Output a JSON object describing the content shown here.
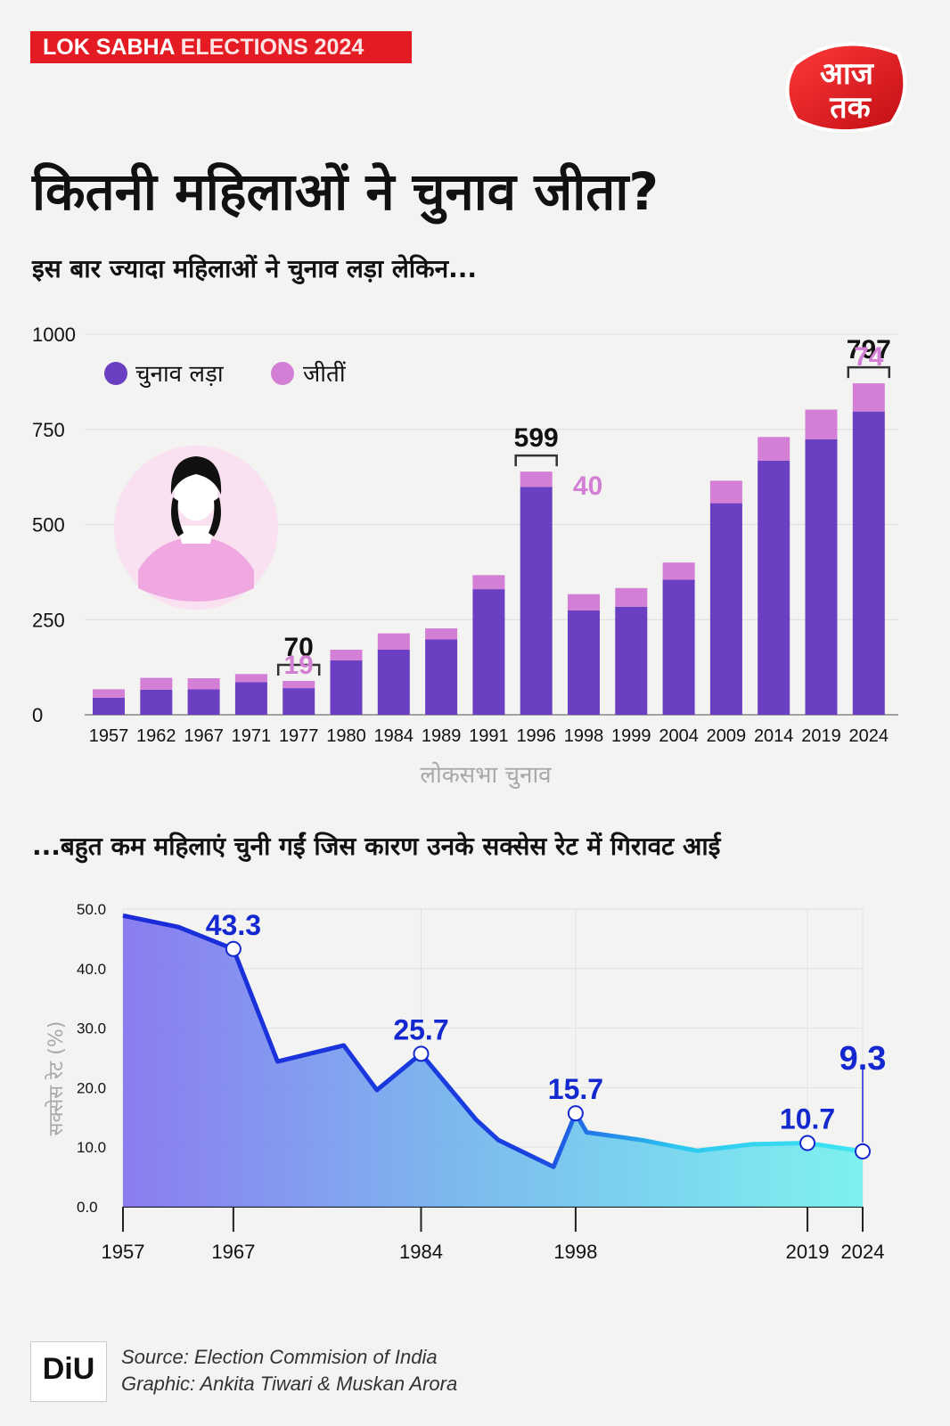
{
  "header": {
    "tag_part1": "LOK SABHA",
    "tag_part2": "ELECTIONS 2024",
    "logo_text_top": "आज",
    "logo_text_bottom": "तक"
  },
  "title": "कितनी महिलाओं ने चुनाव जीता?",
  "subtitle": "इस बार ज्यादा महिलाओं ने चुनाव लड़ा लेकिन...",
  "subtitle2": "...बहुत कम महिलाएं चुनी गईं जिस कारण उनके सक्सेस रेट में गिरावट आई",
  "colors": {
    "contested": "#6a3fc1",
    "won": "#d47fd6",
    "line": "#1428d0",
    "accent_red": "#e41b23"
  },
  "chart_data": [
    {
      "type": "bar",
      "xlabel": "लोकसभा चुनाव",
      "ylabel": "",
      "ylim": [
        0,
        1000
      ],
      "yticks": [
        0,
        250,
        500,
        750,
        1000
      ],
      "legend": [
        "चुनाव लड़ा",
        "जीतीं"
      ],
      "legend_position": "top-left",
      "categories": [
        "1957",
        "1962",
        "1967",
        "1971",
        "1977",
        "1980",
        "1984",
        "1989",
        "1991",
        "1996",
        "1998",
        "1999",
        "2004",
        "2009",
        "2014",
        "2019",
        "2024"
      ],
      "series": [
        {
          "name": "चुनाव लड़ा",
          "values": [
            45,
            66,
            67,
            86,
            70,
            143,
            171,
            198,
            330,
            599,
            274,
            284,
            355,
            556,
            668,
            724,
            797
          ]
        },
        {
          "name": "जीतीं",
          "values": [
            22,
            31,
            29,
            21,
            19,
            28,
            43,
            29,
            37,
            40,
            43,
            49,
            45,
            59,
            62,
            78,
            74
          ]
        }
      ],
      "annotations": [
        {
          "category": "1977",
          "contested": "70",
          "won": "19"
        },
        {
          "category": "1996",
          "contested": "599",
          "won": "40"
        },
        {
          "category": "2024",
          "contested": "797",
          "won": "74"
        }
      ]
    },
    {
      "type": "area",
      "ylabel": "सक्सेस रेट (%)",
      "ylim": [
        0,
        50
      ],
      "yticks": [
        "0.0",
        "10.0",
        "20.0",
        "30.0",
        "40.0",
        "50.0"
      ],
      "x_tick_labels": [
        "1957",
        "1967",
        "1984",
        "1998",
        "2019",
        "2024"
      ],
      "x": [
        "1957",
        "1962",
        "1967",
        "1971",
        "1977",
        "1980",
        "1984",
        "1989",
        "1991",
        "1996",
        "1998",
        "1999",
        "2004",
        "2009",
        "2014",
        "2019",
        "2024"
      ],
      "values": [
        48.9,
        47.0,
        43.3,
        24.4,
        27.1,
        19.6,
        25.7,
        14.6,
        11.2,
        6.7,
        15.7,
        12.5,
        11.2,
        9.4,
        10.5,
        10.7,
        9.3
      ],
      "labels": [
        {
          "x": "1967",
          "value": "43.3"
        },
        {
          "x": "1984",
          "value": "25.7"
        },
        {
          "x": "1998",
          "value": "15.7"
        },
        {
          "x": "2019",
          "value": "10.7"
        },
        {
          "x": "2024",
          "value": "9.3"
        }
      ]
    }
  ],
  "footer": {
    "logo": "DiU",
    "source": "Source: Election Commision of India",
    "graphic": "Graphic: Ankita Tiwari & Muskan Arora"
  }
}
